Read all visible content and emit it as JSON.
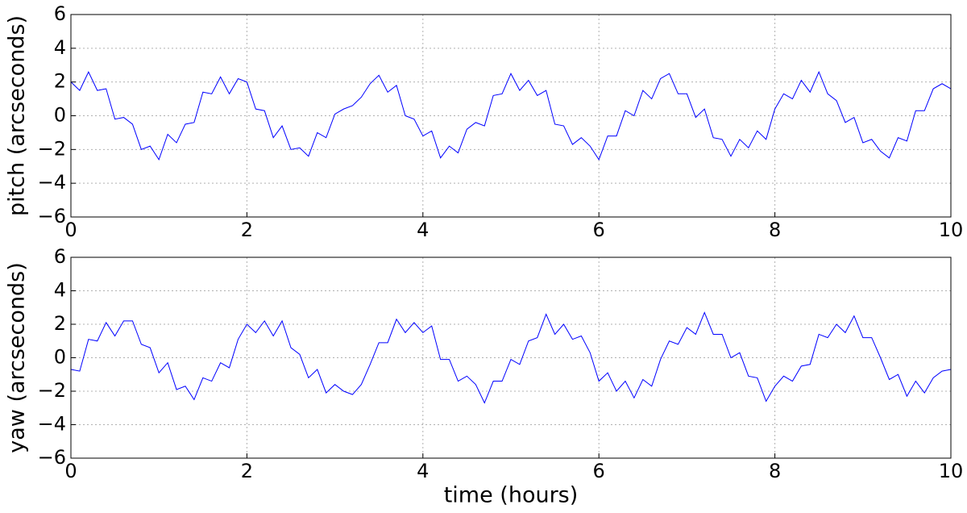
{
  "chart_data": [
    {
      "type": "line",
      "y_label": "pitch (arcseconds)",
      "color": "#0000ff",
      "grid": true,
      "x": [
        0,
        0.1,
        0.2,
        0.3,
        0.4,
        0.5,
        0.6,
        0.7,
        0.8,
        0.9,
        1,
        1.1,
        1.2,
        1.3,
        1.4,
        1.5,
        1.6,
        1.7,
        1.8,
        1.9,
        2,
        2.1,
        2.2,
        2.3,
        2.4,
        2.5,
        2.6,
        2.7,
        2.8,
        2.9,
        3,
        3.1,
        3.2,
        3.3,
        3.4,
        3.5,
        3.6,
        3.7,
        3.8,
        3.9,
        4,
        4.1,
        4.2,
        4.3,
        4.4,
        4.5,
        4.6,
        4.7,
        4.8,
        4.9,
        5,
        5.1,
        5.2,
        5.3,
        5.4,
        5.5,
        5.6,
        5.7,
        5.8,
        5.9,
        6,
        6.1,
        6.2,
        6.3,
        6.4,
        6.5,
        6.6,
        6.7,
        6.8,
        6.9,
        7,
        7.1,
        7.2,
        7.3,
        7.4,
        7.5,
        7.6,
        7.7,
        7.8,
        7.9,
        8,
        8.1,
        8.2,
        8.3,
        8.4,
        8.5,
        8.6,
        8.7,
        8.8,
        8.9,
        9,
        9.1,
        9.2,
        9.3,
        9.4,
        9.5,
        9.6,
        9.7,
        9.8,
        9.9,
        10
      ],
      "values": [
        2.0,
        1.5,
        2.6,
        1.5,
        1.6,
        -0.2,
        -0.1,
        -0.5,
        -2.0,
        -1.8,
        -2.6,
        -1.1,
        -1.6,
        -0.5,
        -0.4,
        1.4,
        1.3,
        2.3,
        1.3,
        2.2,
        2.0,
        0.4,
        0.3,
        -1.3,
        -0.6,
        -2.0,
        -1.9,
        -2.4,
        -1.0,
        -1.3,
        0.1,
        0.4,
        0.6,
        1.1,
        1.9,
        2.4,
        1.4,
        1.8,
        0.0,
        -0.2,
        -1.2,
        -0.9,
        -2.5,
        -1.8,
        -2.2,
        -0.8,
        -0.4,
        -0.6,
        1.2,
        1.3,
        2.5,
        1.5,
        2.1,
        1.2,
        1.5,
        -0.5,
        -0.6,
        -1.7,
        -1.3,
        -1.8,
        -2.6,
        -1.2,
        -1.2,
        0.3,
        0.0,
        1.5,
        1.0,
        2.2,
        2.5,
        1.3,
        1.3,
        -0.1,
        0.4,
        -1.3,
        -1.4,
        -2.4,
        -1.4,
        -1.9,
        -0.9,
        -1.4,
        0.4,
        1.3,
        1.0,
        2.1,
        1.4,
        2.6,
        1.3,
        0.9,
        -0.4,
        -0.1,
        -1.6,
        -1.4,
        -2.1,
        -2.5,
        -1.3,
        -1.5,
        0.3,
        0.3,
        1.6,
        1.9,
        1.6
      ],
      "xlim": [
        0,
        10
      ],
      "xticks": [
        0,
        2,
        4,
        6,
        8,
        10
      ],
      "ylim": [
        -6,
        6
      ],
      "yticks": [
        {
          "value": -6,
          "label": "−6"
        },
        {
          "value": -4,
          "label": "−4"
        },
        {
          "value": -2,
          "label": "−2"
        },
        0,
        2,
        4,
        6
      ]
    },
    {
      "type": "line",
      "y_label": "yaw (arcseconds)",
      "x_label": "time (hours)",
      "color": "#0000ff",
      "grid": true,
      "x": [
        0,
        0.1,
        0.2,
        0.3,
        0.4,
        0.5,
        0.6,
        0.7,
        0.8,
        0.9,
        1,
        1.1,
        1.2,
        1.3,
        1.4,
        1.5,
        1.6,
        1.7,
        1.8,
        1.9,
        2,
        2.1,
        2.2,
        2.3,
        2.4,
        2.5,
        2.6,
        2.7,
        2.8,
        2.9,
        3,
        3.1,
        3.2,
        3.3,
        3.4,
        3.5,
        3.6,
        3.7,
        3.8,
        3.9,
        4,
        4.1,
        4.2,
        4.3,
        4.4,
        4.5,
        4.6,
        4.7,
        4.8,
        4.9,
        5,
        5.1,
        5.2,
        5.3,
        5.4,
        5.5,
        5.6,
        5.7,
        5.8,
        5.9,
        6,
        6.1,
        6.2,
        6.3,
        6.4,
        6.5,
        6.6,
        6.7,
        6.8,
        6.9,
        7,
        7.1,
        7.2,
        7.3,
        7.4,
        7.5,
        7.6,
        7.7,
        7.8,
        7.9,
        8,
        8.1,
        8.2,
        8.3,
        8.4,
        8.5,
        8.6,
        8.7,
        8.8,
        8.9,
        9,
        9.1,
        9.2,
        9.3,
        9.4,
        9.5,
        9.6,
        9.7,
        9.8,
        9.9,
        10
      ],
      "values": [
        -0.7,
        -0.8,
        1.1,
        1.0,
        2.1,
        1.3,
        2.2,
        2.2,
        0.8,
        0.6,
        -0.9,
        -0.3,
        -1.9,
        -1.7,
        -2.5,
        -1.2,
        -1.4,
        -0.3,
        -0.6,
        1.1,
        2.0,
        1.5,
        2.2,
        1.3,
        2.2,
        0.6,
        0.2,
        -1.2,
        -0.7,
        -2.1,
        -1.6,
        -2.0,
        -2.2,
        -1.6,
        -0.4,
        0.9,
        0.9,
        2.3,
        1.5,
        2.1,
        1.5,
        1.9,
        -0.1,
        -0.1,
        -1.4,
        -1.1,
        -1.6,
        -2.7,
        -1.4,
        -1.4,
        -0.1,
        -0.4,
        1.0,
        1.2,
        2.6,
        1.4,
        2.0,
        1.1,
        1.3,
        0.3,
        -1.4,
        -0.9,
        -2.0,
        -1.4,
        -2.4,
        -1.3,
        -1.7,
        -0.1,
        1.0,
        0.8,
        1.8,
        1.4,
        2.7,
        1.4,
        1.4,
        0.0,
        0.3,
        -1.1,
        -1.2,
        -2.6,
        -1.7,
        -1.1,
        -1.4,
        -0.5,
        -0.4,
        1.4,
        1.2,
        2.0,
        1.5,
        2.5,
        1.2,
        1.2,
        0.0,
        -1.3,
        -1.0,
        -2.3,
        -1.4,
        -2.1,
        -1.2,
        -0.8,
        -0.7
      ],
      "xlim": [
        0,
        10
      ],
      "xticks": [
        0,
        2,
        4,
        6,
        8,
        10
      ],
      "ylim": [
        -6,
        6
      ],
      "yticks": [
        {
          "value": -6,
          "label": "−6"
        },
        {
          "value": -4,
          "label": "−4"
        },
        {
          "value": -2,
          "label": "−2"
        },
        0,
        2,
        4,
        6
      ]
    }
  ]
}
